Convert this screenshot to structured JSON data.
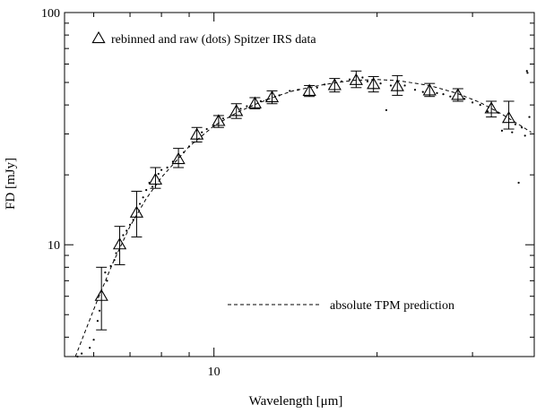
{
  "chart_data": {
    "type": "scatter",
    "title": "",
    "xlabel": "Wavelength [μm]",
    "ylabel": "FD [mJy]",
    "x_scale": "log",
    "y_scale": "log",
    "xlim": [
      5.3,
      39
    ],
    "ylim": [
      3.3,
      100
    ],
    "grid": false,
    "x_tick_labels": [
      {
        "value": 10,
        "label": "10"
      }
    ],
    "y_tick_labels": [
      {
        "value": 10,
        "label": "10"
      },
      {
        "value": 100,
        "label": "100"
      }
    ],
    "legend": [
      {
        "label": "rebinned and raw (dots) Spitzer IRS data",
        "marker": "triangle",
        "placement": "top-left"
      },
      {
        "label": "absolute TPM prediction",
        "linestyle": "dashed",
        "placement": "bottom-right"
      }
    ],
    "series": [
      {
        "name": "rebinned and raw (dots) Spitzer IRS data",
        "marker": "triangle",
        "points": [
          {
            "x": 6.2,
            "y": 6.0,
            "err_low": 4.3,
            "err_high": 8.0
          },
          {
            "x": 6.7,
            "y": 10.0,
            "err_low": 8.2,
            "err_high": 12.0
          },
          {
            "x": 7.2,
            "y": 13.7,
            "err_low": 10.8,
            "err_high": 17.0
          },
          {
            "x": 7.8,
            "y": 19.0,
            "err_low": 17.5,
            "err_high": 21.5
          },
          {
            "x": 8.6,
            "y": 23.3,
            "err_low": 21.5,
            "err_high": 26.0
          },
          {
            "x": 9.3,
            "y": 29.7,
            "err_low": 27.7,
            "err_high": 32.0
          },
          {
            "x": 10.2,
            "y": 34.0,
            "err_low": 32.0,
            "err_high": 36.0
          },
          {
            "x": 11.0,
            "y": 37.5,
            "err_low": 35.0,
            "err_high": 40.5
          },
          {
            "x": 11.9,
            "y": 40.5,
            "err_low": 38.5,
            "err_high": 43.0
          },
          {
            "x": 12.8,
            "y": 43.0,
            "err_low": 40.5,
            "err_high": 46.0
          },
          {
            "x": 15.0,
            "y": 45.8,
            "err_low": 43.5,
            "err_high": 48.5
          },
          {
            "x": 16.7,
            "y": 48.5,
            "err_low": 45.5,
            "err_high": 52.0
          },
          {
            "x": 18.3,
            "y": 51.0,
            "err_low": 47.5,
            "err_high": 56.0
          },
          {
            "x": 19.7,
            "y": 49.0,
            "err_low": 45.5,
            "err_high": 53.0
          },
          {
            "x": 21.8,
            "y": 48.0,
            "err_low": 44.0,
            "err_high": 53.5
          },
          {
            "x": 25.0,
            "y": 46.0,
            "err_low": 43.5,
            "err_high": 49.5
          },
          {
            "x": 28.2,
            "y": 44.0,
            "err_low": 41.5,
            "err_high": 47.0
          },
          {
            "x": 32.5,
            "y": 38.5,
            "err_low": 35.5,
            "err_high": 41.5
          },
          {
            "x": 35.0,
            "y": 35.0,
            "err_low": 31.5,
            "err_high": 41.5
          }
        ]
      },
      {
        "name": "raw dots",
        "marker": "dot",
        "points": [
          {
            "x": 5.6,
            "y": 3.3
          },
          {
            "x": 5.7,
            "y": 3.4
          },
          {
            "x": 5.9,
            "y": 3.6
          },
          {
            "x": 6.0,
            "y": 3.9
          },
          {
            "x": 6.1,
            "y": 4.7
          },
          {
            "x": 6.15,
            "y": 5.2
          },
          {
            "x": 6.3,
            "y": 7.6
          },
          {
            "x": 6.35,
            "y": 7.0
          },
          {
            "x": 6.45,
            "y": 8.1
          },
          {
            "x": 6.55,
            "y": 8.6
          },
          {
            "x": 6.6,
            "y": 9.2
          },
          {
            "x": 6.8,
            "y": 11.0
          },
          {
            "x": 6.9,
            "y": 11.5
          },
          {
            "x": 7.0,
            "y": 12.2
          },
          {
            "x": 7.1,
            "y": 12.8
          },
          {
            "x": 7.3,
            "y": 15.0
          },
          {
            "x": 7.4,
            "y": 16.0
          },
          {
            "x": 7.5,
            "y": 17.2
          },
          {
            "x": 7.6,
            "y": 18.5
          },
          {
            "x": 7.7,
            "y": 17.8
          },
          {
            "x": 7.9,
            "y": 20.2
          },
          {
            "x": 8.0,
            "y": 21.0
          },
          {
            "x": 8.2,
            "y": 21.5
          },
          {
            "x": 8.4,
            "y": 22.8
          },
          {
            "x": 8.8,
            "y": 25.0
          },
          {
            "x": 9.0,
            "y": 26.5
          },
          {
            "x": 9.5,
            "y": 30.5
          },
          {
            "x": 9.7,
            "y": 31.5
          },
          {
            "x": 10.0,
            "y": 32.5
          },
          {
            "x": 10.4,
            "y": 35.0
          },
          {
            "x": 10.7,
            "y": 35.5
          },
          {
            "x": 11.2,
            "y": 38.5
          },
          {
            "x": 11.5,
            "y": 39.5
          },
          {
            "x": 12.2,
            "y": 41.5
          },
          {
            "x": 12.5,
            "y": 42.0
          },
          {
            "x": 13.2,
            "y": 44.0
          },
          {
            "x": 13.8,
            "y": 46.0
          },
          {
            "x": 14.3,
            "y": 46.5
          },
          {
            "x": 15.5,
            "y": 47.5
          },
          {
            "x": 16.0,
            "y": 49.0
          },
          {
            "x": 17.2,
            "y": 50.5
          },
          {
            "x": 17.8,
            "y": 51.5
          },
          {
            "x": 18.8,
            "y": 52.5
          },
          {
            "x": 19.2,
            "y": 50.5
          },
          {
            "x": 20.3,
            "y": 49.5
          },
          {
            "x": 20.8,
            "y": 38.0
          },
          {
            "x": 21.2,
            "y": 48.5
          },
          {
            "x": 22.5,
            "y": 48.5
          },
          {
            "x": 23.5,
            "y": 46.5
          },
          {
            "x": 24.3,
            "y": 45.5
          },
          {
            "x": 25.8,
            "y": 45.0
          },
          {
            "x": 26.5,
            "y": 44.5
          },
          {
            "x": 27.3,
            "y": 43.5
          },
          {
            "x": 29.0,
            "y": 42.5
          },
          {
            "x": 30.0,
            "y": 41.0
          },
          {
            "x": 31.0,
            "y": 40.0
          },
          {
            "x": 32.0,
            "y": 37.5
          },
          {
            "x": 33.5,
            "y": 37.0
          },
          {
            "x": 34.0,
            "y": 31.0
          },
          {
            "x": 35.5,
            "y": 30.5
          },
          {
            "x": 36.0,
            "y": 33.0
          },
          {
            "x": 36.5,
            "y": 18.5
          },
          {
            "x": 37.0,
            "y": 32.0
          },
          {
            "x": 37.5,
            "y": 29.5
          },
          {
            "x": 37.8,
            "y": 56.0
          },
          {
            "x": 37.9,
            "y": 55.0
          },
          {
            "x": 38.2,
            "y": 35.5
          }
        ]
      },
      {
        "name": "absolute TPM prediction",
        "linestyle": "dashed",
        "points": [
          {
            "x": 5.55,
            "y": 3.3
          },
          {
            "x": 5.8,
            "y": 4.3
          },
          {
            "x": 6.1,
            "y": 5.8
          },
          {
            "x": 6.5,
            "y": 8.3
          },
          {
            "x": 7.0,
            "y": 12.0
          },
          {
            "x": 7.5,
            "y": 15.8
          },
          {
            "x": 8.0,
            "y": 19.5
          },
          {
            "x": 9.0,
            "y": 26.5
          },
          {
            "x": 10.0,
            "y": 32.5
          },
          {
            "x": 11.0,
            "y": 37.0
          },
          {
            "x": 12.0,
            "y": 40.5
          },
          {
            "x": 13.0,
            "y": 43.5
          },
          {
            "x": 14.0,
            "y": 46.0
          },
          {
            "x": 16.0,
            "y": 49.0
          },
          {
            "x": 18.0,
            "y": 51.0
          },
          {
            "x": 20.0,
            "y": 51.5
          },
          {
            "x": 22.0,
            "y": 50.8
          },
          {
            "x": 25.0,
            "y": 48.5
          },
          {
            "x": 28.0,
            "y": 45.0
          },
          {
            "x": 31.0,
            "y": 41.0
          },
          {
            "x": 34.0,
            "y": 36.5
          },
          {
            "x": 36.5,
            "y": 33.0
          },
          {
            "x": 38.5,
            "y": 30.5
          }
        ]
      }
    ]
  }
}
